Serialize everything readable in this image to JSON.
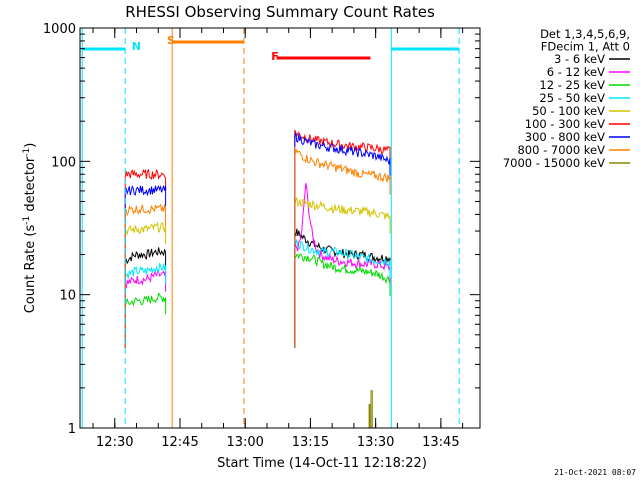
{
  "chart_data": {
    "type": "line",
    "title": "RHESSI Observing Summary Count Rates",
    "xlabel": "Start Time (14-Oct-11 12:18:22)",
    "ylabel_main": "Count Rate (s",
    "ylabel_exp1": "-1",
    "ylabel_mid": " detector",
    "ylabel_exp2": "-1",
    "ylabel_end": ")",
    "yscale": "log",
    "ylim": [
      1,
      1000
    ],
    "x_unit": "minutes",
    "xlim": [
      12.3667,
      13.9
    ],
    "y_tick_labels": [
      "1",
      "10",
      "100",
      "1000"
    ],
    "y_tick_values": [
      1,
      10,
      100,
      1000
    ],
    "x_tick_labels": [
      "12:30",
      "12:45",
      "13:00",
      "13:15",
      "13:30",
      "13:45"
    ],
    "x_tick_values": [
      12.5,
      12.75,
      13.0,
      13.25,
      13.5,
      13.75
    ],
    "legend": {
      "header": [
        "Det 1,3,4,5,6,9,",
        "FDecim 1, Att 0"
      ],
      "placement": "right",
      "entries": [
        {
          "label": "3 - 6 keV",
          "color": "#000000"
        },
        {
          "label": "6 - 12 keV",
          "color": "#ff00ff"
        },
        {
          "label": "12 - 25 keV",
          "color": "#00dd00"
        },
        {
          "label": "25 - 50 keV",
          "color": "#00e5ff"
        },
        {
          "label": "50 - 100 keV",
          "color": "#d4c400"
        },
        {
          "label": "100 - 300 keV",
          "color": "#ff0000"
        },
        {
          "label": "300 - 800 keV",
          "color": "#0000ff"
        },
        {
          "label": "800 - 7000 keV",
          "color": "#ff8000"
        },
        {
          "label": "7000 - 15000 keV",
          "color": "#888800"
        }
      ]
    },
    "markers": [
      {
        "label": "N",
        "color": "#00e5ff"
      },
      {
        "label": "S",
        "color": "#ff8000"
      },
      {
        "label": "F",
        "color": "#ff0000"
      }
    ],
    "series": [
      {
        "name": "3 - 6 keV",
        "color": "#000000",
        "segments": [
          {
            "t": [
              12.54,
              12.58,
              12.62,
              12.66,
              12.695
            ],
            "y": [
              18,
              20,
              20,
              21,
              21
            ]
          },
          {
            "t": [
              13.19,
              13.22,
              13.26,
              13.3,
              13.35,
              13.4,
              13.45,
              13.5,
              13.555
            ],
            "y": [
              30,
              27,
              24,
              22,
              21,
              20,
              20,
              19,
              19
            ]
          }
        ]
      },
      {
        "name": "6 - 12 keV",
        "color": "#ff00ff",
        "segments": [
          {
            "t": [
              12.54,
              12.58,
              12.62,
              12.66,
              12.695
            ],
            "y": [
              12,
              13,
              13,
              14,
              14
            ]
          },
          {
            "t": [
              13.19,
              13.205,
              13.215,
              13.225,
              13.232,
              13.24,
              13.25,
              13.26,
              13.275,
              13.29,
              13.31,
              13.35,
              13.4,
              13.45,
              13.5,
              13.555
            ],
            "y": [
              22,
              23,
              28,
              45,
              70,
              50,
              35,
              26,
              22,
              20,
              19,
              18,
              17.5,
              17,
              17,
              16
            ]
          }
        ]
      },
      {
        "name": "12 - 25 keV",
        "color": "#00dd00",
        "segments": [
          {
            "t": [
              12.54,
              12.58,
              12.62,
              12.66,
              12.695
            ],
            "y": [
              8.5,
              9,
              9,
              9.5,
              9.5
            ]
          },
          {
            "t": [
              13.19,
              13.25,
              13.3,
              13.35,
              13.4,
              13.45,
              13.5,
              13.555
            ],
            "y": [
              20,
              19,
              17,
              16,
              15.5,
              15,
              14.5,
              13
            ]
          }
        ]
      },
      {
        "name": "25 - 50 keV",
        "color": "#00e5ff",
        "segments": [
          {
            "t": [
              12.54,
              12.58,
              12.62,
              12.66,
              12.695
            ],
            "y": [
              14,
              15,
              15,
              16,
              16
            ]
          },
          {
            "t": [
              13.19,
              13.25,
              13.3,
              13.35,
              13.4,
              13.45,
              13.5,
              13.555
            ],
            "y": [
              25,
              22,
              21,
              21,
              20,
              19,
              18,
              18
            ]
          }
        ]
      },
      {
        "name": "50 - 100 keV",
        "color": "#d4c400",
        "segments": [
          {
            "t": [
              12.54,
              12.58,
              12.62,
              12.66,
              12.695
            ],
            "y": [
              30,
              31,
              31,
              32,
              32
            ]
          },
          {
            "t": [
              13.19,
              13.25,
              13.3,
              13.35,
              13.4,
              13.45,
              13.5,
              13.555
            ],
            "y": [
              50,
              48,
              46,
              44,
              43,
              42,
              41,
              38
            ]
          }
        ]
      },
      {
        "name": "100 - 300 keV",
        "color": "#ff0000",
        "segments": [
          {
            "t": [
              12.54,
              12.58,
              12.62,
              12.66,
              12.695
            ],
            "y": [
              80,
              80,
              80,
              80,
              80
            ]
          },
          {
            "t": [
              13.19,
              13.22,
              13.26,
              13.3,
              13.35,
              13.4,
              13.45,
              13.5,
              13.555
            ],
            "y": [
              165,
              155,
              145,
              140,
              135,
              130,
              128,
              125,
              120
            ]
          }
        ]
      },
      {
        "name": "300 - 800 keV",
        "color": "#0000ff",
        "segments": [
          {
            "t": [
              12.54,
              12.58,
              12.62,
              12.66,
              12.695
            ],
            "y": [
              60,
              61,
              61,
              61,
              61
            ]
          },
          {
            "t": [
              13.19,
              13.22,
              13.26,
              13.3,
              13.35,
              13.4,
              13.45,
              13.5,
              13.555
            ],
            "y": [
              155,
              145,
              135,
              130,
              125,
              120,
              115,
              110,
              100
            ]
          }
        ]
      },
      {
        "name": "800 - 7000 keV",
        "color": "#ff8000",
        "segments": [
          {
            "t": [
              12.54,
              12.58,
              12.62,
              12.66,
              12.695
            ],
            "y": [
              43,
              44,
              44,
              44,
              44
            ]
          },
          {
            "t": [
              13.19,
              13.22,
              13.26,
              13.3,
              13.35,
              13.4,
              13.45,
              13.5,
              13.555
            ],
            "y": [
              120,
              110,
              100,
              95,
              90,
              85,
              80,
              78,
              75
            ]
          }
        ]
      },
      {
        "name": "7000 - 15000 keV",
        "color": "#888800",
        "segments": [
          {
            "t": [
              13.475,
              13.475,
              13.478,
              13.478,
              13.482,
              13.482,
              13.487,
              13.487
            ],
            "y": [
              1,
              1.5,
              1.5,
              1,
              1,
              1.9,
              1.9,
              1
            ]
          }
        ]
      }
    ],
    "attenuator_lines": [
      {
        "marker": "N",
        "style": "solid",
        "t": [
          12.375,
          12.54
        ]
      },
      {
        "marker": "N",
        "style": "dashed",
        "t": [
          12.54
        ]
      },
      {
        "marker": "N",
        "style": "solid",
        "t": [
          13.56,
          13.82
        ]
      },
      {
        "marker": "N",
        "style": "dashed",
        "t": [
          13.82
        ]
      },
      {
        "marker": "S",
        "style": "solid",
        "t": [
          12.72,
          12.995
        ]
      },
      {
        "marker": "S",
        "style": "dashed",
        "t": [
          12.995
        ]
      },
      {
        "marker": "F",
        "style": "solid",
        "t": [
          13.12,
          13.48
        ]
      }
    ]
  },
  "footer": {
    "timestamp": "21-Oct-2021 08:07"
  }
}
